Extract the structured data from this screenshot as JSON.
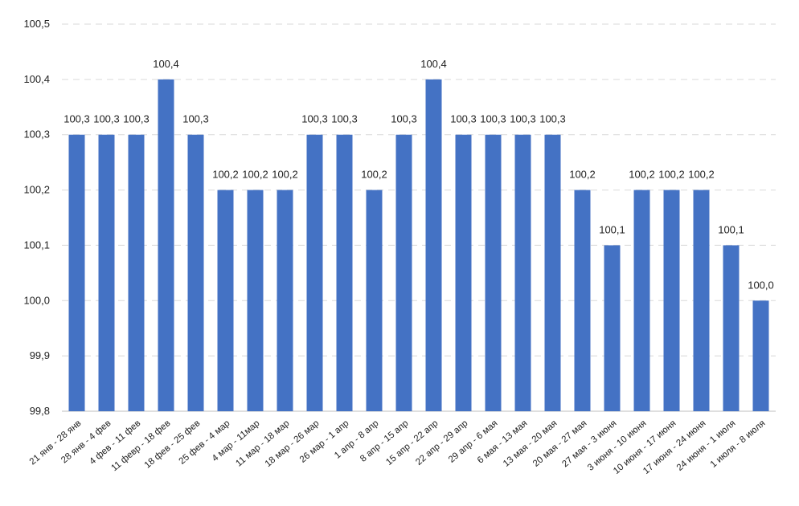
{
  "chart_data": {
    "type": "bar",
    "title": "",
    "xlabel": "",
    "ylabel": "",
    "ylim": [
      99.8,
      100.5
    ],
    "yticks": [
      "99,8",
      "99,9",
      "100,0",
      "100,1",
      "100,2",
      "100,3",
      "100,4",
      "100,5"
    ],
    "grid": true,
    "bar_color": "#4472C4",
    "categories": [
      "21 янв - 28 янв",
      "28 янв - 4 фев",
      "4 фев - 11 фев",
      "11 февр - 18 фев",
      "18 фев - 25 фев",
      "25 фев - 4 мар",
      "4 мар - 11мар",
      "11 мар - 18 мар",
      "18 мар - 26 мар",
      "26 мар - 1 апр",
      "1 апр - 8 апр",
      "8 апр - 15 апр",
      "15 апр - 22 апр",
      "22 апр - 29 апр",
      "29 апр - 6 мая",
      "6 мая - 13 мая",
      "13 мая - 20 мая",
      "20 мая - 27 мая",
      "27 мая - 3 июня",
      "3 июня - 10 июня",
      "10 июня - 17 июня",
      "17 июня - 24 июня",
      "24 июня - 1 июля",
      "1 июля - 8 июля"
    ],
    "values": [
      100.3,
      100.3,
      100.3,
      100.4,
      100.3,
      100.2,
      100.2,
      100.2,
      100.3,
      100.3,
      100.2,
      100.3,
      100.4,
      100.3,
      100.3,
      100.3,
      100.3,
      100.2,
      100.1,
      100.2,
      100.2,
      100.2,
      100.1,
      100.0
    ],
    "data_labels": [
      "100,3",
      "100,3",
      "100,3",
      "100,4",
      "100,3",
      "100,2",
      "100,2",
      "100,2",
      "100,3",
      "100,3",
      "100,2",
      "100,3",
      "100,4",
      "100,3",
      "100,3",
      "100,3",
      "100,3",
      "100,2",
      "100,1",
      "100,2",
      "100,2",
      "100,2",
      "100,1",
      "100,0"
    ]
  }
}
